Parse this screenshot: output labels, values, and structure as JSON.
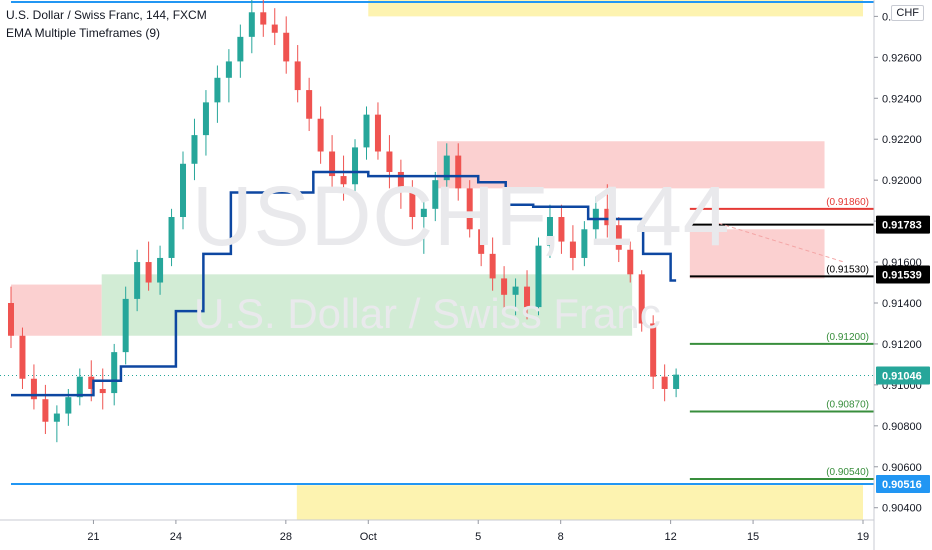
{
  "legend": {
    "title": "U.S. Dollar / Swiss Franc, 144, FXCM",
    "indicator": "EMA Multiple Timeframes (9)"
  },
  "watermark": {
    "symbol": "USDCHF, 144",
    "description": "U.S. Dollar / Swiss Franc"
  },
  "currency_button": "CHF",
  "colors": {
    "up": "#26a69a",
    "down": "#ef5350",
    "ema": "#0d47a1",
    "level_red": "#e53935",
    "level_green": "#388e3c",
    "black": "#000000",
    "blue_line": "#2196f3",
    "zone_red": "#fbd0d0",
    "zone_green": "#d2ecd5",
    "zone_yellow": "#fdf3b0",
    "axis_text": "#131722"
  },
  "chart_data": {
    "type": "candlestick",
    "title": "U.S. Dollar / Swiss Franc, 144, FXCM",
    "ylim": [
      0.9034,
      0.9288
    ],
    "y_ticks": [
      0.904,
      0.906,
      0.908,
      0.91,
      0.912,
      0.914,
      0.916,
      0.918,
      0.92,
      0.922,
      0.924,
      0.926,
      0.928
    ],
    "y_tick_labels": [
      "0.90400",
      "0.90600",
      "0.90800",
      "0.91000",
      "0.91200",
      "0.91400",
      "0.91600",
      "0.91800",
      "0.92000",
      "0.92200",
      "0.92400",
      "0.92600",
      "0.92800"
    ],
    "x_axis": {
      "start": "2018-09-18",
      "end": "2018-10-19",
      "ticks": [
        {
          "date": "2018-09-21",
          "label": "21"
        },
        {
          "date": "2018-09-24",
          "label": "24"
        },
        {
          "date": "2018-09-28",
          "label": "28"
        },
        {
          "date": "2018-10-01",
          "label": "Oct"
        },
        {
          "date": "2018-10-05",
          "label": "5"
        },
        {
          "date": "2018-10-08",
          "label": "8"
        },
        {
          "date": "2018-10-12",
          "label": "12"
        },
        {
          "date": "2018-10-15",
          "label": "15"
        },
        {
          "date": "2018-10-19",
          "label": "19"
        }
      ]
    },
    "grid": false,
    "ohlc": [
      [
        0.914,
        0.9148,
        0.9118,
        0.9124
      ],
      [
        0.9124,
        0.9128,
        0.9098,
        0.9103
      ],
      [
        0.9103,
        0.911,
        0.9088,
        0.9093
      ],
      [
        0.9093,
        0.91,
        0.9076,
        0.9082
      ],
      [
        0.9082,
        0.909,
        0.9072,
        0.9086
      ],
      [
        0.9086,
        0.9098,
        0.908,
        0.9094
      ],
      [
        0.9094,
        0.9108,
        0.909,
        0.9104
      ],
      [
        0.9104,
        0.9112,
        0.9092,
        0.9098
      ],
      [
        0.9098,
        0.9108,
        0.9088,
        0.9096
      ],
      [
        0.9096,
        0.912,
        0.909,
        0.9116
      ],
      [
        0.9116,
        0.9148,
        0.911,
        0.9142
      ],
      [
        0.9142,
        0.9166,
        0.9136,
        0.916
      ],
      [
        0.916,
        0.917,
        0.9146,
        0.915
      ],
      [
        0.915,
        0.9168,
        0.9144,
        0.9162
      ],
      [
        0.9162,
        0.9186,
        0.9158,
        0.9182
      ],
      [
        0.9182,
        0.9214,
        0.9176,
        0.9208
      ],
      [
        0.9208,
        0.923,
        0.92,
        0.9222
      ],
      [
        0.9222,
        0.9244,
        0.9212,
        0.9238
      ],
      [
        0.9238,
        0.9256,
        0.9228,
        0.925
      ],
      [
        0.925,
        0.9264,
        0.9238,
        0.9258
      ],
      [
        0.9258,
        0.9276,
        0.925,
        0.927
      ],
      [
        0.927,
        0.9288,
        0.9262,
        0.9282
      ],
      [
        0.9282,
        0.929,
        0.927,
        0.9276
      ],
      [
        0.9276,
        0.9284,
        0.9266,
        0.9272
      ],
      [
        0.9272,
        0.928,
        0.9252,
        0.9258
      ],
      [
        0.9258,
        0.9266,
        0.9238,
        0.9244
      ],
      [
        0.9244,
        0.925,
        0.9224,
        0.923
      ],
      [
        0.923,
        0.9236,
        0.9208,
        0.9214
      ],
      [
        0.9214,
        0.9222,
        0.9196,
        0.9202
      ],
      [
        0.9202,
        0.9212,
        0.919,
        0.9198
      ],
      [
        0.9198,
        0.922,
        0.9194,
        0.9216
      ],
      [
        0.9216,
        0.9236,
        0.921,
        0.9232
      ],
      [
        0.9232,
        0.9238,
        0.921,
        0.9214
      ],
      [
        0.9214,
        0.9222,
        0.9196,
        0.9204
      ],
      [
        0.9204,
        0.921,
        0.9186,
        0.9194
      ],
      [
        0.9194,
        0.92,
        0.9176,
        0.9182
      ],
      [
        0.9182,
        0.9192,
        0.9164,
        0.9186
      ],
      [
        0.9186,
        0.9204,
        0.918,
        0.92
      ],
      [
        0.92,
        0.9218,
        0.9194,
        0.9212
      ],
      [
        0.9212,
        0.9218,
        0.919,
        0.9196
      ],
      [
        0.9196,
        0.92,
        0.9172,
        0.9176
      ],
      [
        0.9176,
        0.9182,
        0.9158,
        0.9164
      ],
      [
        0.9164,
        0.9172,
        0.9146,
        0.9152
      ],
      [
        0.9152,
        0.9158,
        0.9136,
        0.9144
      ],
      [
        0.9144,
        0.9152,
        0.9134,
        0.9148
      ],
      [
        0.9148,
        0.9156,
        0.9132,
        0.9138
      ],
      [
        0.9138,
        0.9172,
        0.9134,
        0.9168
      ],
      [
        0.9168,
        0.9188,
        0.9162,
        0.9182
      ],
      [
        0.9182,
        0.9188,
        0.9164,
        0.917
      ],
      [
        0.917,
        0.9178,
        0.9156,
        0.9162
      ],
      [
        0.9162,
        0.918,
        0.9158,
        0.9176
      ],
      [
        0.9176,
        0.9192,
        0.917,
        0.9186
      ],
      [
        0.9186,
        0.9198,
        0.9172,
        0.9178
      ],
      [
        0.9178,
        0.9182,
        0.916,
        0.9166
      ],
      [
        0.9166,
        0.917,
        0.915,
        0.9154
      ],
      [
        0.9154,
        0.9156,
        0.9126,
        0.913
      ],
      [
        0.913,
        0.9134,
        0.9098,
        0.9104
      ],
      [
        0.9104,
        0.911,
        0.9092,
        0.9098
      ],
      [
        0.9098,
        0.9108,
        0.9094,
        0.9105
      ]
    ],
    "ema_steps": [
      {
        "from": "2018-09-18",
        "to": "2018-09-21",
        "value": 0.9095
      },
      {
        "from": "2018-09-21",
        "to": "2018-09-22",
        "value": 0.9102
      },
      {
        "from": "2018-09-22",
        "to": "2018-09-24",
        "value": 0.9109
      },
      {
        "from": "2018-09-24",
        "to": "2018-09-25",
        "value": 0.9136
      },
      {
        "from": "2018-09-25",
        "to": "2018-09-26",
        "value": 0.9164
      },
      {
        "from": "2018-09-26",
        "to": "2018-09-28",
        "value": 0.9194
      },
      {
        "from": "2018-09-28",
        "to": "2018-09-29",
        "value": 0.9194
      },
      {
        "from": "2018-09-29",
        "to": "2018-10-01",
        "value": 0.9204
      },
      {
        "from": "2018-10-01",
        "to": "2018-10-05",
        "value": 0.9202
      },
      {
        "from": "2018-10-05",
        "to": "2018-10-06",
        "value": 0.9199
      },
      {
        "from": "2018-10-06",
        "to": "2018-10-07",
        "value": 0.9188
      },
      {
        "from": "2018-10-07",
        "to": "2018-10-09",
        "value": 0.9187
      },
      {
        "from": "2018-10-09",
        "to": "2018-10-11",
        "value": 0.9181
      },
      {
        "from": "2018-10-11",
        "to": "2018-10-12",
        "value": 0.9164
      },
      {
        "from": "2018-10-12",
        "to": "2018-10-12.2",
        "value": 0.9151
      }
    ],
    "zones": [
      {
        "color": "red",
        "from": "2018-09-18",
        "to": "2018-09-21.3",
        "top": 0.9149,
        "bottom": 0.9124
      },
      {
        "color": "green",
        "from": "2018-09-21.3",
        "to": "2018-10-10.6",
        "top": 0.9154,
        "bottom": 0.9124
      },
      {
        "color": "red",
        "from": "2018-10-03.5",
        "to": "2018-10-17.6",
        "top": 0.9219,
        "bottom": 0.9196
      },
      {
        "color": "red",
        "from": "2018-10-12.7",
        "to": "2018-10-17.6",
        "top": 0.9176,
        "bottom": 0.9152
      },
      {
        "color": "yellow",
        "from": "2018-10-01",
        "to": "2018-10-19",
        "top": 0.9288,
        "bottom": 0.928
      },
      {
        "color": "yellow",
        "from": "2018-09-28.4",
        "to": "2018-10-19",
        "top": 0.9051,
        "bottom": 0.9034
      }
    ],
    "levels": [
      {
        "value": 0.9186,
        "label": "(0.91860)",
        "color": "red",
        "from": "2018-10-12.7"
      },
      {
        "value": 0.9153,
        "label": "(0.91530)",
        "color": "black",
        "from": "2018-10-12.7"
      },
      {
        "value": 0.912,
        "label": "(0.91200)",
        "color": "green",
        "from": "2018-10-12.7"
      },
      {
        "value": 0.9087,
        "label": "(0.90870)",
        "color": "green",
        "from": "2018-10-12.7"
      },
      {
        "value": 0.9054,
        "label": "(0.90540)",
        "color": "green",
        "from": "2018-10-12.7"
      }
    ],
    "h_lines": [
      {
        "value": 0.91783,
        "from": "2018-10-12.7",
        "color": "black"
      },
      {
        "value": 0.9287,
        "from": "2018-09-18",
        "color": "blue"
      },
      {
        "value": 0.90516,
        "from": "2018-09-18",
        "color": "blue"
      }
    ],
    "price_labels": [
      {
        "value": 0.91783,
        "label": "0.91783",
        "bg": "#000000",
        "fg": "#ffffff"
      },
      {
        "value": 0.91539,
        "label": "0.91539",
        "bg": "#000000",
        "fg": "#ffffff"
      },
      {
        "value": 0.91046,
        "label": "0.91046",
        "bg": "#26a69a",
        "fg": "#ffffff"
      },
      {
        "value": 0.90516,
        "label": "0.90516",
        "bg": "#2196f3",
        "fg": "#ffffff"
      }
    ],
    "last_price": 0.91046
  }
}
